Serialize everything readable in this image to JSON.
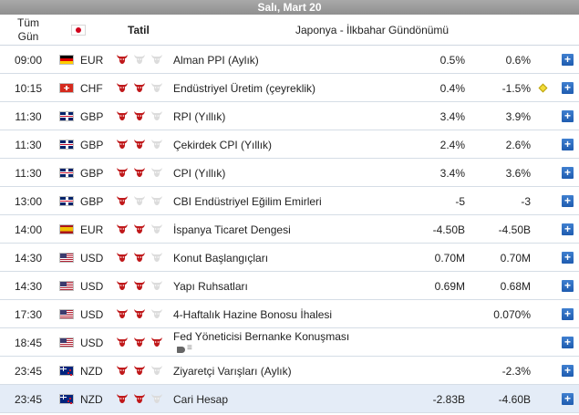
{
  "date_bar": "Salı, Mart 20",
  "header": {
    "time_label": "Tüm Gün",
    "flag_icon": "japan-flag",
    "holiday": "Tatil",
    "event": "Japonya - İlkbahar Gündönümü"
  },
  "colors": {
    "bull_active": "#c0191b",
    "bull_inactive": "#dcdcdc",
    "expand_button": "#2a6cc0",
    "highlight_row": "#e4ecf7"
  },
  "rows": [
    {
      "time": "09:00",
      "flag": "de",
      "currency": "EUR",
      "importance": 1,
      "event": "Alman PPI (Aylık)",
      "actual": "0.5%",
      "previous": "0.6%",
      "revised": false
    },
    {
      "time": "10:15",
      "flag": "ch",
      "currency": "CHF",
      "importance": 2,
      "event": "Endüstriyel Üretim (çeyreklik)",
      "actual": "0.4%",
      "previous": "-1.5%",
      "revised": true
    },
    {
      "time": "11:30",
      "flag": "gb",
      "currency": "GBP",
      "importance": 2,
      "event": "RPI (Yıllık)",
      "actual": "3.4%",
      "previous": "3.9%",
      "revised": false
    },
    {
      "time": "11:30",
      "flag": "gb",
      "currency": "GBP",
      "importance": 2,
      "event": "Çekirdek CPI (Yıllık)",
      "actual": "2.4%",
      "previous": "2.6%",
      "revised": false
    },
    {
      "time": "11:30",
      "flag": "gb",
      "currency": "GBP",
      "importance": 2,
      "event": "CPI (Yıllık)",
      "actual": "3.4%",
      "previous": "3.6%",
      "revised": false
    },
    {
      "time": "13:00",
      "flag": "gb",
      "currency": "GBP",
      "importance": 1,
      "event": "CBI Endüstriyel Eğilim Emirleri",
      "actual": "-5",
      "previous": "-3",
      "revised": false
    },
    {
      "time": "14:00",
      "flag": "es",
      "currency": "EUR",
      "importance": 2,
      "event": "İspanya Ticaret Dengesi",
      "actual": "-4.50B",
      "previous": "-4.50B",
      "revised": false
    },
    {
      "time": "14:30",
      "flag": "us",
      "currency": "USD",
      "importance": 2,
      "event": "Konut Başlangıçları",
      "actual": "0.70M",
      "previous": "0.70M",
      "revised": false
    },
    {
      "time": "14:30",
      "flag": "us",
      "currency": "USD",
      "importance": 2,
      "event": "Yapı Ruhsatları",
      "actual": "0.69M",
      "previous": "0.68M",
      "revised": false
    },
    {
      "time": "17:30",
      "flag": "us",
      "currency": "USD",
      "importance": 2,
      "event": "4-Haftalık Hazine Bonosu İhalesi",
      "actual": "",
      "previous": "0.070%",
      "revised": false
    },
    {
      "time": "18:45",
      "flag": "us",
      "currency": "USD",
      "importance": 3,
      "event": "Fed Yöneticisi Bernanke Konuşması",
      "actual": "",
      "previous": "",
      "revised": false,
      "speech": true
    },
    {
      "time": "23:45",
      "flag": "nz",
      "currency": "NZD",
      "importance": 2,
      "event": "Ziyaretçi Varışları (Aylık)",
      "actual": "",
      "previous": "-2.3%",
      "revised": false
    },
    {
      "time": "23:45",
      "flag": "nz",
      "currency": "NZD",
      "importance": 2,
      "event": "Cari Hesap",
      "actual": "-2.83B",
      "previous": "-4.60B",
      "revised": false,
      "highlight": true
    }
  ],
  "expand_label": "+"
}
